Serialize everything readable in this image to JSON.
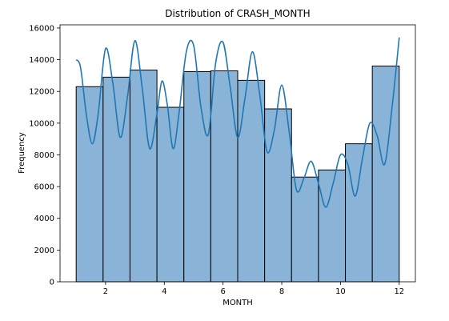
{
  "chart_data": {
    "type": "bar",
    "title": "Distribution of CRASH_MONTH",
    "xlabel": "MONTH",
    "ylabel": "Frequency",
    "xlim": [
      0.45,
      12.55
    ],
    "ylim": [
      0,
      16200
    ],
    "xticks": [
      2,
      4,
      6,
      8,
      10,
      12
    ],
    "yticks": [
      0,
      2000,
      4000,
      6000,
      8000,
      10000,
      12000,
      14000,
      16000
    ],
    "bins": [
      {
        "x0": 1.0,
        "x1": 1.917,
        "value": 12300
      },
      {
        "x0": 1.917,
        "x1": 2.833,
        "value": 12900
      },
      {
        "x0": 2.833,
        "x1": 3.75,
        "value": 13350
      },
      {
        "x0": 3.75,
        "x1": 4.667,
        "value": 11000
      },
      {
        "x0": 4.667,
        "x1": 5.583,
        "value": 13250
      },
      {
        "x0": 5.583,
        "x1": 6.5,
        "value": 13300
      },
      {
        "x0": 6.5,
        "x1": 7.417,
        "value": 12700
      },
      {
        "x0": 7.417,
        "x1": 8.333,
        "value": 10900
      },
      {
        "x0": 8.333,
        "x1": 9.25,
        "value": 6600
      },
      {
        "x0": 9.25,
        "x1": 10.167,
        "value": 7050
      },
      {
        "x0": 10.167,
        "x1": 11.083,
        "value": 8700
      },
      {
        "x0": 11.083,
        "x1": 12.0,
        "value": 13600
      }
    ],
    "kde": {
      "x": [
        1.0,
        1.15,
        1.35,
        1.55,
        1.75,
        2.0,
        2.25,
        2.5,
        2.75,
        3.0,
        3.25,
        3.5,
        3.75,
        3.92,
        4.1,
        4.3,
        4.5,
        4.75,
        5.0,
        5.25,
        5.5,
        5.75,
        6.0,
        6.25,
        6.5,
        6.75,
        7.0,
        7.25,
        7.5,
        7.75,
        8.0,
        8.25,
        8.5,
        8.75,
        9.0,
        9.25,
        9.5,
        9.75,
        10.0,
        10.25,
        10.5,
        10.75,
        11.0,
        11.25,
        11.5,
        11.75,
        12.0
      ],
      "y": [
        14000,
        13500,
        10500,
        8700,
        10600,
        14700,
        12500,
        9100,
        11700,
        15200,
        12200,
        8400,
        10600,
        12650,
        11200,
        8400,
        10600,
        14500,
        14900,
        11000,
        9300,
        13800,
        15100,
        12200,
        9100,
        11600,
        14500,
        11800,
        8200,
        9600,
        12400,
        9500,
        5800,
        6500,
        7600,
        6200,
        4700,
        6200,
        8000,
        7400,
        5400,
        7800,
        10000,
        9200,
        7400,
        10900,
        15400
      ]
    },
    "colors": {
      "bar_fill": "#89b4d7",
      "bar_edge": "#000000",
      "kde_line": "#1f77b4"
    }
  }
}
